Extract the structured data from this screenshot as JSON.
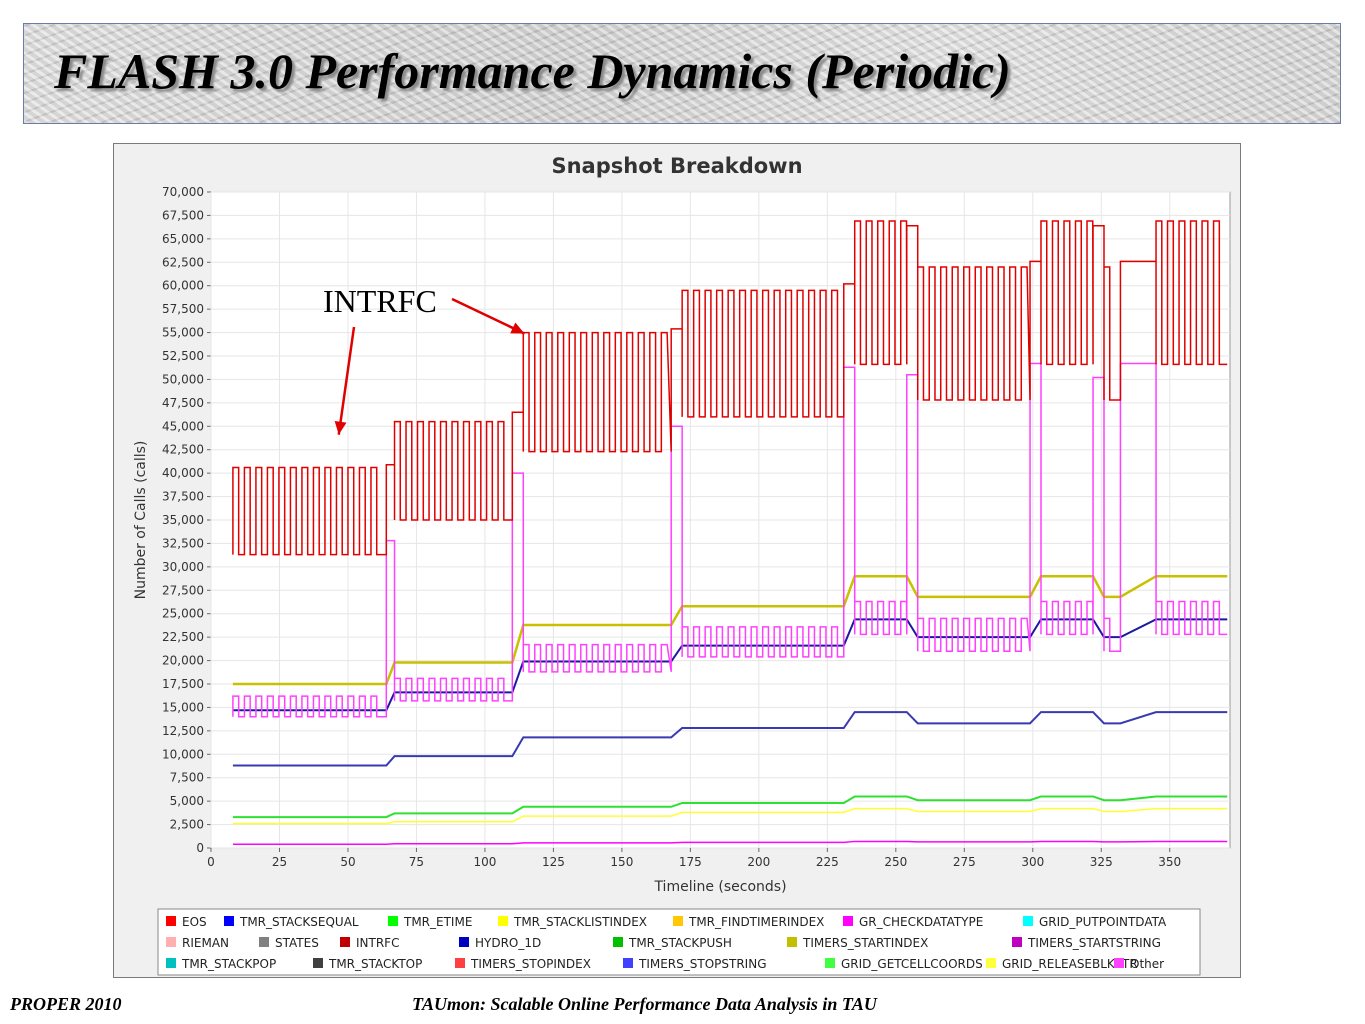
{
  "slide": {
    "title": "FLASH 3.0 Performance Dynamics (Periodic)",
    "footer_left": "PROPER 2010",
    "footer_right": "TAUmon: Scalable Online Performance Data Analysis in TAU"
  },
  "chart_data": {
    "type": "line",
    "title": "Snapshot Breakdown",
    "xlabel": "Timeline (seconds)",
    "ylabel": "Number of Calls (calls)",
    "xlim": [
      0,
      372
    ],
    "ylim": [
      0,
      70000
    ],
    "xticks": [
      0,
      25,
      50,
      75,
      100,
      125,
      150,
      175,
      200,
      225,
      250,
      275,
      300,
      325,
      350
    ],
    "yticks": [
      0,
      2500,
      5000,
      7500,
      10000,
      12500,
      15000,
      17500,
      20000,
      22500,
      25000,
      27500,
      30000,
      32500,
      35000,
      37500,
      40000,
      42500,
      45000,
      47500,
      50000,
      52500,
      55000,
      57500,
      60000,
      62500,
      65000,
      67500,
      70000
    ],
    "annotation": {
      "text": "INTRFC",
      "points_to": [
        [
          47,
          44000
        ],
        [
          113,
          55000
        ]
      ]
    },
    "segments": [
      {
        "start": 8,
        "end": 64,
        "intrfc_low": 31300,
        "intrfc_high": 40600,
        "spike": 40900,
        "pink_low": 14000,
        "pink_high": 16200,
        "pink_spike": 32800,
        "hydro": 14700,
        "yellow": 17500,
        "blue": 8800,
        "green": 3300,
        "lightyellow": 2600,
        "magenta": 400
      },
      {
        "start": 67,
        "end": 110,
        "intrfc_low": 35000,
        "intrfc_high": 45500,
        "spike": 46500,
        "pink_low": 15700,
        "pink_high": 18100,
        "pink_spike": 40000,
        "hydro": 16600,
        "yellow": 19800,
        "blue": 9800,
        "green": 3700,
        "lightyellow": 2800,
        "magenta": 450
      },
      {
        "start": 114,
        "end": 168,
        "intrfc_low": 42300,
        "intrfc_high": 55000,
        "spike": 55400,
        "pink_low": 18800,
        "pink_high": 21700,
        "pink_spike": 45000,
        "hydro": 19900,
        "yellow": 23800,
        "blue": 11800,
        "green": 4400,
        "lightyellow": 3400,
        "magenta": 550
      },
      {
        "start": 172,
        "end": 231,
        "intrfc_low": 46000,
        "intrfc_high": 59500,
        "spike": 60200,
        "pink_low": 20400,
        "pink_high": 23600,
        "pink_spike": 51300,
        "hydro": 21600,
        "yellow": 25800,
        "blue": 12800,
        "green": 4800,
        "lightyellow": 3800,
        "magenta": 600
      },
      {
        "start": 235,
        "end": 254,
        "intrfc_low": 51600,
        "intrfc_high": 66900,
        "spike": 66400,
        "pink_low": 22800,
        "pink_high": 26300,
        "pink_spike": 50500,
        "hydro": 24400,
        "yellow": 29000,
        "blue": 14500,
        "green": 5500,
        "lightyellow": 4200,
        "magenta": 700
      },
      {
        "start": 258,
        "end": 299,
        "intrfc_low": 47800,
        "intrfc_high": 62000,
        "spike": 62600,
        "pink_low": 21000,
        "pink_high": 24500,
        "pink_spike": 51700,
        "hydro": 22500,
        "yellow": 26800,
        "blue": 13300,
        "green": 5100,
        "lightyellow": 3900,
        "magenta": 650
      },
      {
        "start": 303,
        "end": 322,
        "intrfc_low": 51600,
        "intrfc_high": 66900,
        "spike": 66400,
        "pink_low": 22800,
        "pink_high": 26300,
        "pink_spike": 50200,
        "hydro": 24400,
        "yellow": 29000,
        "blue": 14500,
        "green": 5500,
        "lightyellow": 4200,
        "magenta": 700
      },
      {
        "start": 326,
        "end": 332,
        "intrfc_low": 47800,
        "intrfc_high": 62000,
        "spike": 62600,
        "pink_low": 21000,
        "pink_high": 24500,
        "pink_spike": 51700,
        "hydro": 22500,
        "yellow": 26800,
        "blue": 13300,
        "green": 5100,
        "lightyellow": 3900,
        "magenta": 650
      },
      {
        "start": 345,
        "end": 371,
        "intrfc_low": 51600,
        "intrfc_high": 66900,
        "spike": 66900,
        "pink_low": 22800,
        "pink_high": 26300,
        "pink_spike": 26300,
        "hydro": 24400,
        "yellow": 29000,
        "blue": 14500,
        "green": 5500,
        "lightyellow": 4200,
        "magenta": 700
      }
    ],
    "legend_position": "bottom",
    "legend": [
      {
        "name": "EOS",
        "color": "#ff0000"
      },
      {
        "name": "TMR_STACKSEQUAL",
        "color": "#0000ff"
      },
      {
        "name": "TMR_ETIME",
        "color": "#00ff00"
      },
      {
        "name": "TMR_STACKLISTINDEX",
        "color": "#ffff00"
      },
      {
        "name": "TMR_FINDTIMERINDEX",
        "color": "#ffc800"
      },
      {
        "name": "GR_CHECKDATATYPE",
        "color": "#ff00ff"
      },
      {
        "name": "GRID_PUTPOINTDATA",
        "color": "#00ffff"
      },
      {
        "name": "RIEMAN",
        "color": "#ffafaf"
      },
      {
        "name": "STATES",
        "color": "#808080"
      },
      {
        "name": "INTRFC",
        "color": "#c00000"
      },
      {
        "name": "HYDRO_1D",
        "color": "#0000c0"
      },
      {
        "name": "TMR_STACKPUSH",
        "color": "#00c000"
      },
      {
        "name": "TIMERS_STARTINDEX",
        "color": "#c0c000"
      },
      {
        "name": "TIMERS_STARTSTRING",
        "color": "#c000c0"
      },
      {
        "name": "TMR_STACKPOP",
        "color": "#00c0c0"
      },
      {
        "name": "TMR_STACKTOP",
        "color": "#404040"
      },
      {
        "name": "TIMERS_STOPINDEX",
        "color": "#ff4040"
      },
      {
        "name": "TIMERS_STOPSTRING",
        "color": "#4040ff"
      },
      {
        "name": "GRID_GETCELLCOORDS",
        "color": "#40ff40"
      },
      {
        "name": "GRID_RELEASEBLKPTR",
        "color": "#ffff40"
      },
      {
        "name": "Other",
        "color": "#ff40ff"
      }
    ],
    "series_colors": {
      "intrfc": "#e00000",
      "pink": "#ff40ff",
      "hydro": "#1a1aa0",
      "yellow": "#c8c000",
      "blue": "#3a3ab0",
      "green": "#30e030",
      "lightyellow": "#ffff30",
      "magenta": "#ff00ff"
    }
  }
}
